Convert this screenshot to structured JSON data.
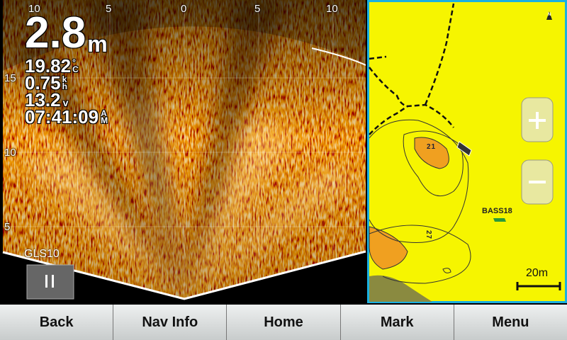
{
  "sonar": {
    "range_top": [
      "10",
      "5",
      "0",
      "5",
      "10"
    ],
    "range_left": [
      "15",
      "10",
      "5"
    ],
    "mode": "GLS10"
  },
  "readouts": [
    {
      "value": "2.8",
      "unit": "m"
    },
    {
      "value": "19.82",
      "unit": "°C"
    },
    {
      "value": "0.75",
      "unit": "kh"
    },
    {
      "value": "13.2",
      "unit": "v"
    },
    {
      "value": "07:41:09",
      "unit": "AM"
    }
  ],
  "map": {
    "waypoint": "BASS18",
    "scale": "20m",
    "depth_labels": [
      "21",
      "27"
    ],
    "north": "N"
  },
  "buttons": [
    "Back",
    "Nav Info",
    "Home",
    "Mark",
    "Menu"
  ]
}
